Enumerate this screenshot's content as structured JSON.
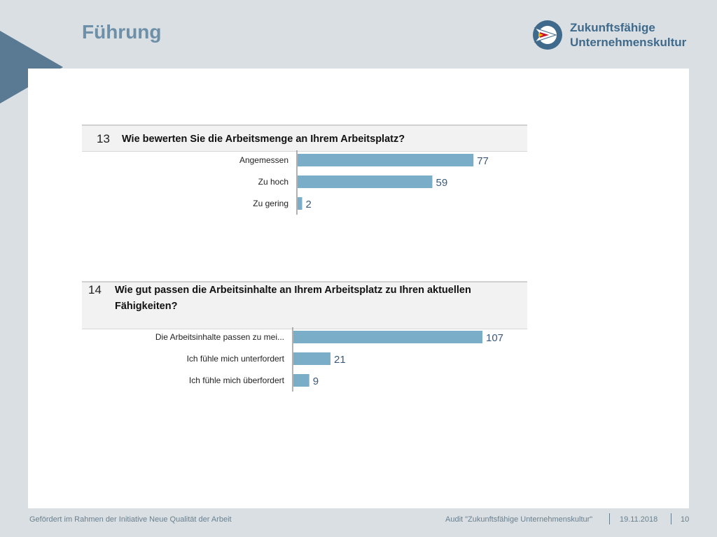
{
  "header": {
    "title": "Führung",
    "logo": {
      "line1": "Zukunftsfähige",
      "line2": "Unternehmenskultur",
      "icon": "arrow-target-icon"
    }
  },
  "colors": {
    "background": "#d9dfe2",
    "bar": "#7aaec8",
    "title": "#6e8fa8",
    "logo_text": "#3f6a8c",
    "arrow": "#5a7a94"
  },
  "chart_data": [
    {
      "type": "bar",
      "orientation": "horizontal",
      "number": "13",
      "title": "Wie bewerten Sie die Arbeitsmenge an Ihrem Arbeitsplatz?",
      "categories": [
        "Angemessen",
        "Zu hoch",
        "Zu gering"
      ],
      "values": [
        77,
        59,
        2
      ],
      "xlim": [
        0,
        80
      ]
    },
    {
      "type": "bar",
      "orientation": "horizontal",
      "number": "14",
      "title": "Wie gut passen die Arbeitsinhalte an Ihrem Arbeitsplatz zu Ihren aktuellen Fähigkeiten?",
      "title_lines": [
        "Wie gut passen die Arbeitsinhalte an Ihrem Arbeitsplatz zu Ihren aktuellen",
        "Fähigkeiten?"
      ],
      "categories": [
        "Die Arbeitsinhalte passen zu mei...",
        "Ich fühle mich unterfordert",
        "Ich fühle mich überfordert"
      ],
      "values": [
        107,
        21,
        9
      ],
      "xlim": [
        0,
        107
      ]
    }
  ],
  "footer": {
    "left": "Gefördert im Rahmen der Initiative Neue Qualität der Arbeit",
    "audit": "Audit \"Zukunftsfähige Unternehmenskultur\"",
    "date": "19.11.2018",
    "page": "10"
  }
}
